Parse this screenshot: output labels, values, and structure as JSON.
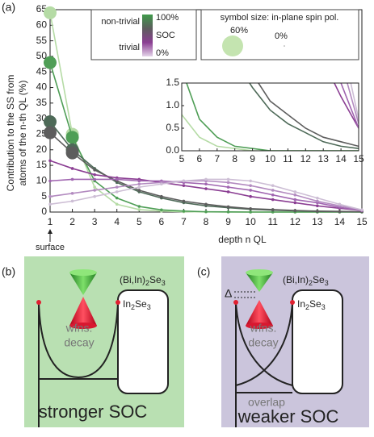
{
  "chart_data": {
    "type": "line",
    "panel_label": "(a)",
    "ylabel": [
      "Contribution to the SS from",
      "atoms of the n-th QL (%)"
    ],
    "xlabel": "depth n QL",
    "annotation": "surface",
    "x": [
      1,
      2,
      3,
      4,
      5,
      6,
      7,
      8,
      9,
      10,
      11,
      12,
      13,
      14,
      15
    ],
    "xlim": [
      1,
      15
    ],
    "ylim": [
      0,
      65
    ],
    "xticks": [
      1,
      2,
      3,
      4,
      5,
      6,
      7,
      8,
      9,
      10,
      11,
      12,
      13,
      14,
      15
    ],
    "yticks": [
      0,
      5,
      10,
      15,
      20,
      25,
      30,
      35,
      40,
      45,
      50,
      55,
      60,
      65
    ],
    "series": [
      {
        "color": "#b5dba5",
        "values": [
          64,
          25,
          8,
          2.5,
          0.8,
          0.3,
          0.1,
          0.05,
          0,
          0,
          0,
          0,
          0,
          0,
          0
        ]
      },
      {
        "color": "#4f9e56",
        "values": [
          48,
          24,
          10,
          4.5,
          1.8,
          0.7,
          0.3,
          0.1,
          0.05,
          0,
          0,
          0,
          0,
          0,
          0
        ]
      },
      {
        "color": "#4e6a58",
        "values": [
          29,
          20,
          14,
          9.5,
          6.5,
          4.5,
          3,
          2,
          1.4,
          0.9,
          0.6,
          0.4,
          0.2,
          0.1,
          0.05
        ]
      },
      {
        "color": "#5d5d5d",
        "values": [
          25.5,
          19,
          13.5,
          10,
          7,
          5,
          3.5,
          2.5,
          1.7,
          1.1,
          0.8,
          0.5,
          0.3,
          0.2,
          0.1
        ]
      },
      {
        "color": "#8b3e93",
        "values": [
          16.5,
          14,
          12,
          11,
          10.5,
          9.5,
          8.5,
          7.5,
          6.5,
          5,
          4,
          3,
          2,
          1.2,
          0.5
        ]
      },
      {
        "color": "#a065b0",
        "values": [
          10,
          10.5,
          10.5,
          10.5,
          10,
          10,
          9.5,
          9,
          8,
          7,
          5.5,
          4,
          3,
          1.5,
          0.5
        ]
      },
      {
        "color": "#b38bc0",
        "values": [
          5,
          6,
          7,
          8,
          9,
          9.5,
          10,
          10,
          9.5,
          8.5,
          7,
          5.5,
          3.5,
          2,
          0.6
        ]
      },
      {
        "color": "#cdbed5",
        "values": [
          2.5,
          3.5,
          5,
          6.5,
          8,
          9,
          10,
          10.5,
          10.5,
          10,
          8.5,
          6.5,
          4.5,
          2.5,
          0.7
        ]
      }
    ],
    "inset": {
      "xlim": [
        5,
        15
      ],
      "ylim": [
        0,
        1.5
      ],
      "xticks": [
        5,
        6,
        7,
        8,
        9,
        10,
        11,
        12,
        13,
        14,
        15
      ],
      "yticks": [
        {
          "value": 0,
          "label": "0.0"
        },
        0.5,
        {
          "value": 1,
          "label": "1.0"
        },
        1.5
      ]
    },
    "legend": {
      "top": "non-trivial",
      "top_pct": "100%",
      "mid": "SOC",
      "bottom": "trivial",
      "bottom_pct": "0%",
      "colors": [
        "#3f9a4a",
        "#5d5d5d",
        "#8b3e93",
        "#e3d3e8"
      ],
      "size_title": "symbol size: in-plane spin pol.",
      "size_big": "60%",
      "size_small": "0%"
    }
  },
  "panel_b": {
    "label": "(b)",
    "material": [
      "(Bi,In)",
      "2",
      "Se",
      "3"
    ],
    "block": [
      "In",
      "2",
      "Se",
      "3"
    ],
    "decay": [
      "wfns.",
      "decay"
    ],
    "caption": "stronger SOC"
  },
  "panel_c": {
    "label": "(c)",
    "gap": "Δ",
    "material": [
      "(Bi,In)",
      "2",
      "Se",
      "3"
    ],
    "block": [
      "In",
      "2",
      "Se",
      "3"
    ],
    "decay": [
      "wfns.",
      "decay"
    ],
    "overlap": "overlap",
    "caption": "weaker SOC"
  }
}
